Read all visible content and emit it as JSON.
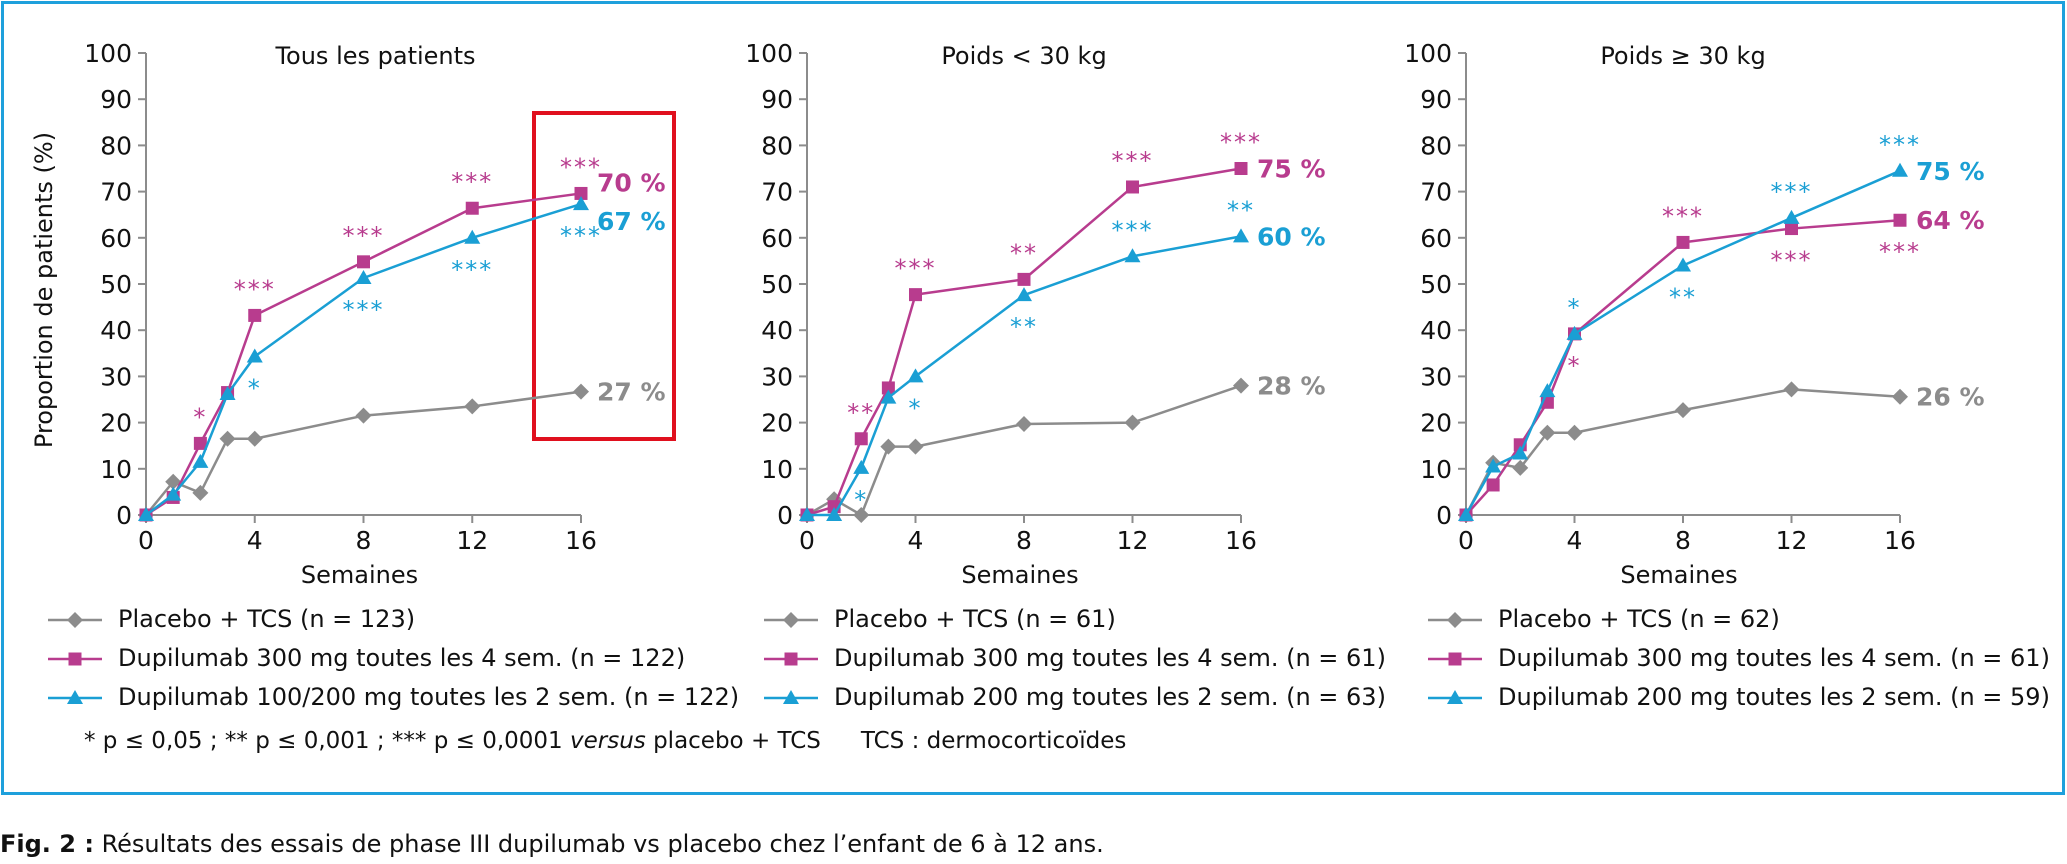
{
  "colors": {
    "placebo": "#8c8c8c",
    "dupi300": "#b83c8e",
    "dupi200": "#1a9fd4",
    "highlight_box": "#e0101e",
    "frame": "#1ea0dc"
  },
  "chart_data": [
    {
      "type": "line",
      "title": "Tous les patients",
      "xlabel": "Semaines",
      "ylabel": "Proportion de patients (%)",
      "x": [
        0,
        1,
        2,
        3,
        4,
        8,
        12,
        16
      ],
      "xticks": [
        0,
        4,
        8,
        12,
        16
      ],
      "yticks": [
        0,
        10,
        20,
        30,
        40,
        50,
        60,
        70,
        80,
        90,
        100
      ],
      "xlim": [
        0,
        16
      ],
      "ylim": [
        0,
        100
      ],
      "grid": false,
      "highlight": "week 16 (red box)",
      "series": [
        {
          "key": "placebo",
          "name": "Placebo + TCS (n = 123)",
          "marker": "diamond",
          "values": [
            0,
            7.2,
            4.8,
            16.5,
            16.5,
            21.5,
            23.5,
            26.7
          ],
          "end_label": "27 %"
        },
        {
          "key": "dupi300",
          "name": "Dupilumab 300 mg toutes les 4 sem. (n = 122)",
          "marker": "square",
          "values": [
            0,
            3.8,
            15.5,
            26.5,
            43.2,
            54.8,
            66.4,
            69.6
          ],
          "end_label": "70 %"
        },
        {
          "key": "dupi200",
          "name": "Dupilumab 100/200 mg toutes les 2 sem. (n = 122)",
          "marker": "triangle",
          "values": [
            0,
            4.4,
            11.5,
            26.2,
            34.3,
            51.3,
            60.0,
            67.3
          ],
          "end_label": "67 %"
        }
      ],
      "annotations": [
        {
          "series": "dupi300",
          "x": 2,
          "text": "*",
          "pos": "above"
        },
        {
          "series": "dupi300",
          "x": 4,
          "text": "***",
          "pos": "above"
        },
        {
          "series": "dupi300",
          "x": 8,
          "text": "***",
          "pos": "above"
        },
        {
          "series": "dupi300",
          "x": 12,
          "text": "***",
          "pos": "above"
        },
        {
          "series": "dupi300",
          "x": 16,
          "text": "***",
          "pos": "above"
        },
        {
          "series": "dupi200",
          "x": 4,
          "text": "*",
          "pos": "below"
        },
        {
          "series": "dupi200",
          "x": 8,
          "text": "***",
          "pos": "below"
        },
        {
          "series": "dupi200",
          "x": 12,
          "text": "***",
          "pos": "below"
        },
        {
          "series": "dupi200",
          "x": 16,
          "text": "***",
          "pos": "below"
        }
      ]
    },
    {
      "type": "line",
      "title": "Poids < 30 kg",
      "xlabel": "Semaines",
      "ylabel": "",
      "x": [
        0,
        1,
        2,
        3,
        4,
        8,
        12,
        16
      ],
      "xticks": [
        0,
        4,
        8,
        12,
        16
      ],
      "yticks": [
        0,
        10,
        20,
        30,
        40,
        50,
        60,
        70,
        80,
        90,
        100
      ],
      "xlim": [
        0,
        16
      ],
      "ylim": [
        0,
        100
      ],
      "grid": false,
      "series": [
        {
          "key": "placebo",
          "name": "Placebo + TCS (n = 61)",
          "marker": "diamond",
          "values": [
            0,
            3.4,
            0,
            14.8,
            14.8,
            19.7,
            20.0,
            28.0
          ],
          "end_label": "28 %"
        },
        {
          "key": "dupi300",
          "name": "Dupilumab 300 mg toutes les 4 sem. (n = 61)",
          "marker": "square",
          "values": [
            0,
            1.8,
            16.5,
            27.5,
            47.7,
            51.0,
            71.0,
            75.0
          ],
          "end_label": "75 %"
        },
        {
          "key": "dupi200",
          "name": "Dupilumab 200 mg toutes les 2 sem. (n = 63)",
          "marker": "triangle",
          "values": [
            0,
            0,
            10.2,
            25.4,
            30.0,
            47.6,
            56.0,
            60.3
          ],
          "end_label": "60 %"
        }
      ],
      "annotations": [
        {
          "series": "dupi300",
          "x": 2,
          "text": "**",
          "pos": "above"
        },
        {
          "series": "dupi300",
          "x": 4,
          "text": "***",
          "pos": "above"
        },
        {
          "series": "dupi300",
          "x": 8,
          "text": "**",
          "pos": "above"
        },
        {
          "series": "dupi300",
          "x": 12,
          "text": "***",
          "pos": "above"
        },
        {
          "series": "dupi300",
          "x": 16,
          "text": "***",
          "pos": "above"
        },
        {
          "series": "dupi200",
          "x": 2,
          "text": "*",
          "pos": "below"
        },
        {
          "series": "dupi200",
          "x": 4,
          "text": "*",
          "pos": "below"
        },
        {
          "series": "dupi200",
          "x": 8,
          "text": "**",
          "pos": "below"
        },
        {
          "series": "dupi200",
          "x": 12,
          "text": "***",
          "pos": "above"
        },
        {
          "series": "dupi200",
          "x": 16,
          "text": "**",
          "pos": "above"
        }
      ]
    },
    {
      "type": "line",
      "title": "Poids ≥ 30 kg",
      "xlabel": "Semaines",
      "ylabel": "",
      "x": [
        0,
        1,
        2,
        3,
        4,
        8,
        12,
        16
      ],
      "xticks": [
        0,
        4,
        8,
        12,
        16
      ],
      "yticks": [
        0,
        10,
        20,
        30,
        40,
        50,
        60,
        70,
        80,
        90,
        100
      ],
      "xlim": [
        0,
        16
      ],
      "ylim": [
        0,
        100
      ],
      "grid": false,
      "series": [
        {
          "key": "placebo",
          "name": "Placebo + TCS (n = 62)",
          "marker": "diamond",
          "values": [
            0,
            11.3,
            10.2,
            17.8,
            17.8,
            22.7,
            27.2,
            25.6
          ],
          "end_label": "26 %"
        },
        {
          "key": "dupi300",
          "name": "Dupilumab 300 mg toutes les 4 sem. (n = 61)",
          "marker": "square",
          "values": [
            0,
            6.5,
            15.2,
            24.4,
            39.2,
            59.0,
            62.0,
            63.8
          ],
          "end_label": "64 %"
        },
        {
          "key": "dupi200",
          "name": "Dupilumab 200 mg toutes les 2 sem. (n = 59)",
          "marker": "triangle",
          "values": [
            0,
            10.5,
            13.3,
            26.8,
            39.2,
            54.0,
            64.3,
            74.5
          ],
          "end_label": "75 %"
        }
      ],
      "annotations": [
        {
          "series": "dupi300",
          "x": 4,
          "text": "*",
          "pos": "below"
        },
        {
          "series": "dupi300",
          "x": 8,
          "text": "***",
          "pos": "above"
        },
        {
          "series": "dupi300",
          "x": 12,
          "text": "***",
          "pos": "below"
        },
        {
          "series": "dupi300",
          "x": 16,
          "text": "***",
          "pos": "below"
        },
        {
          "series": "dupi200",
          "x": 4,
          "text": "*",
          "pos": "above"
        },
        {
          "series": "dupi200",
          "x": 8,
          "text": "**",
          "pos": "below"
        },
        {
          "series": "dupi200",
          "x": 12,
          "text": "***",
          "pos": "above"
        },
        {
          "series": "dupi200",
          "x": 16,
          "text": "***",
          "pos": "above"
        }
      ]
    }
  ],
  "footnote": {
    "significance_part1": "* p ≤ 0,05 ; ** p ≤ 0,001 ; *** p ≤ 0,0001 ",
    "significance_italic": "versus",
    "significance_part2": " placebo + TCS",
    "abbreviation": "TCS : dermocorticoïdes"
  },
  "caption": {
    "label": "Fig. 2 :",
    "text": " Résultats des essais de phase III dupilumab vs placebo chez l’enfant de 6 à 12 ans."
  }
}
